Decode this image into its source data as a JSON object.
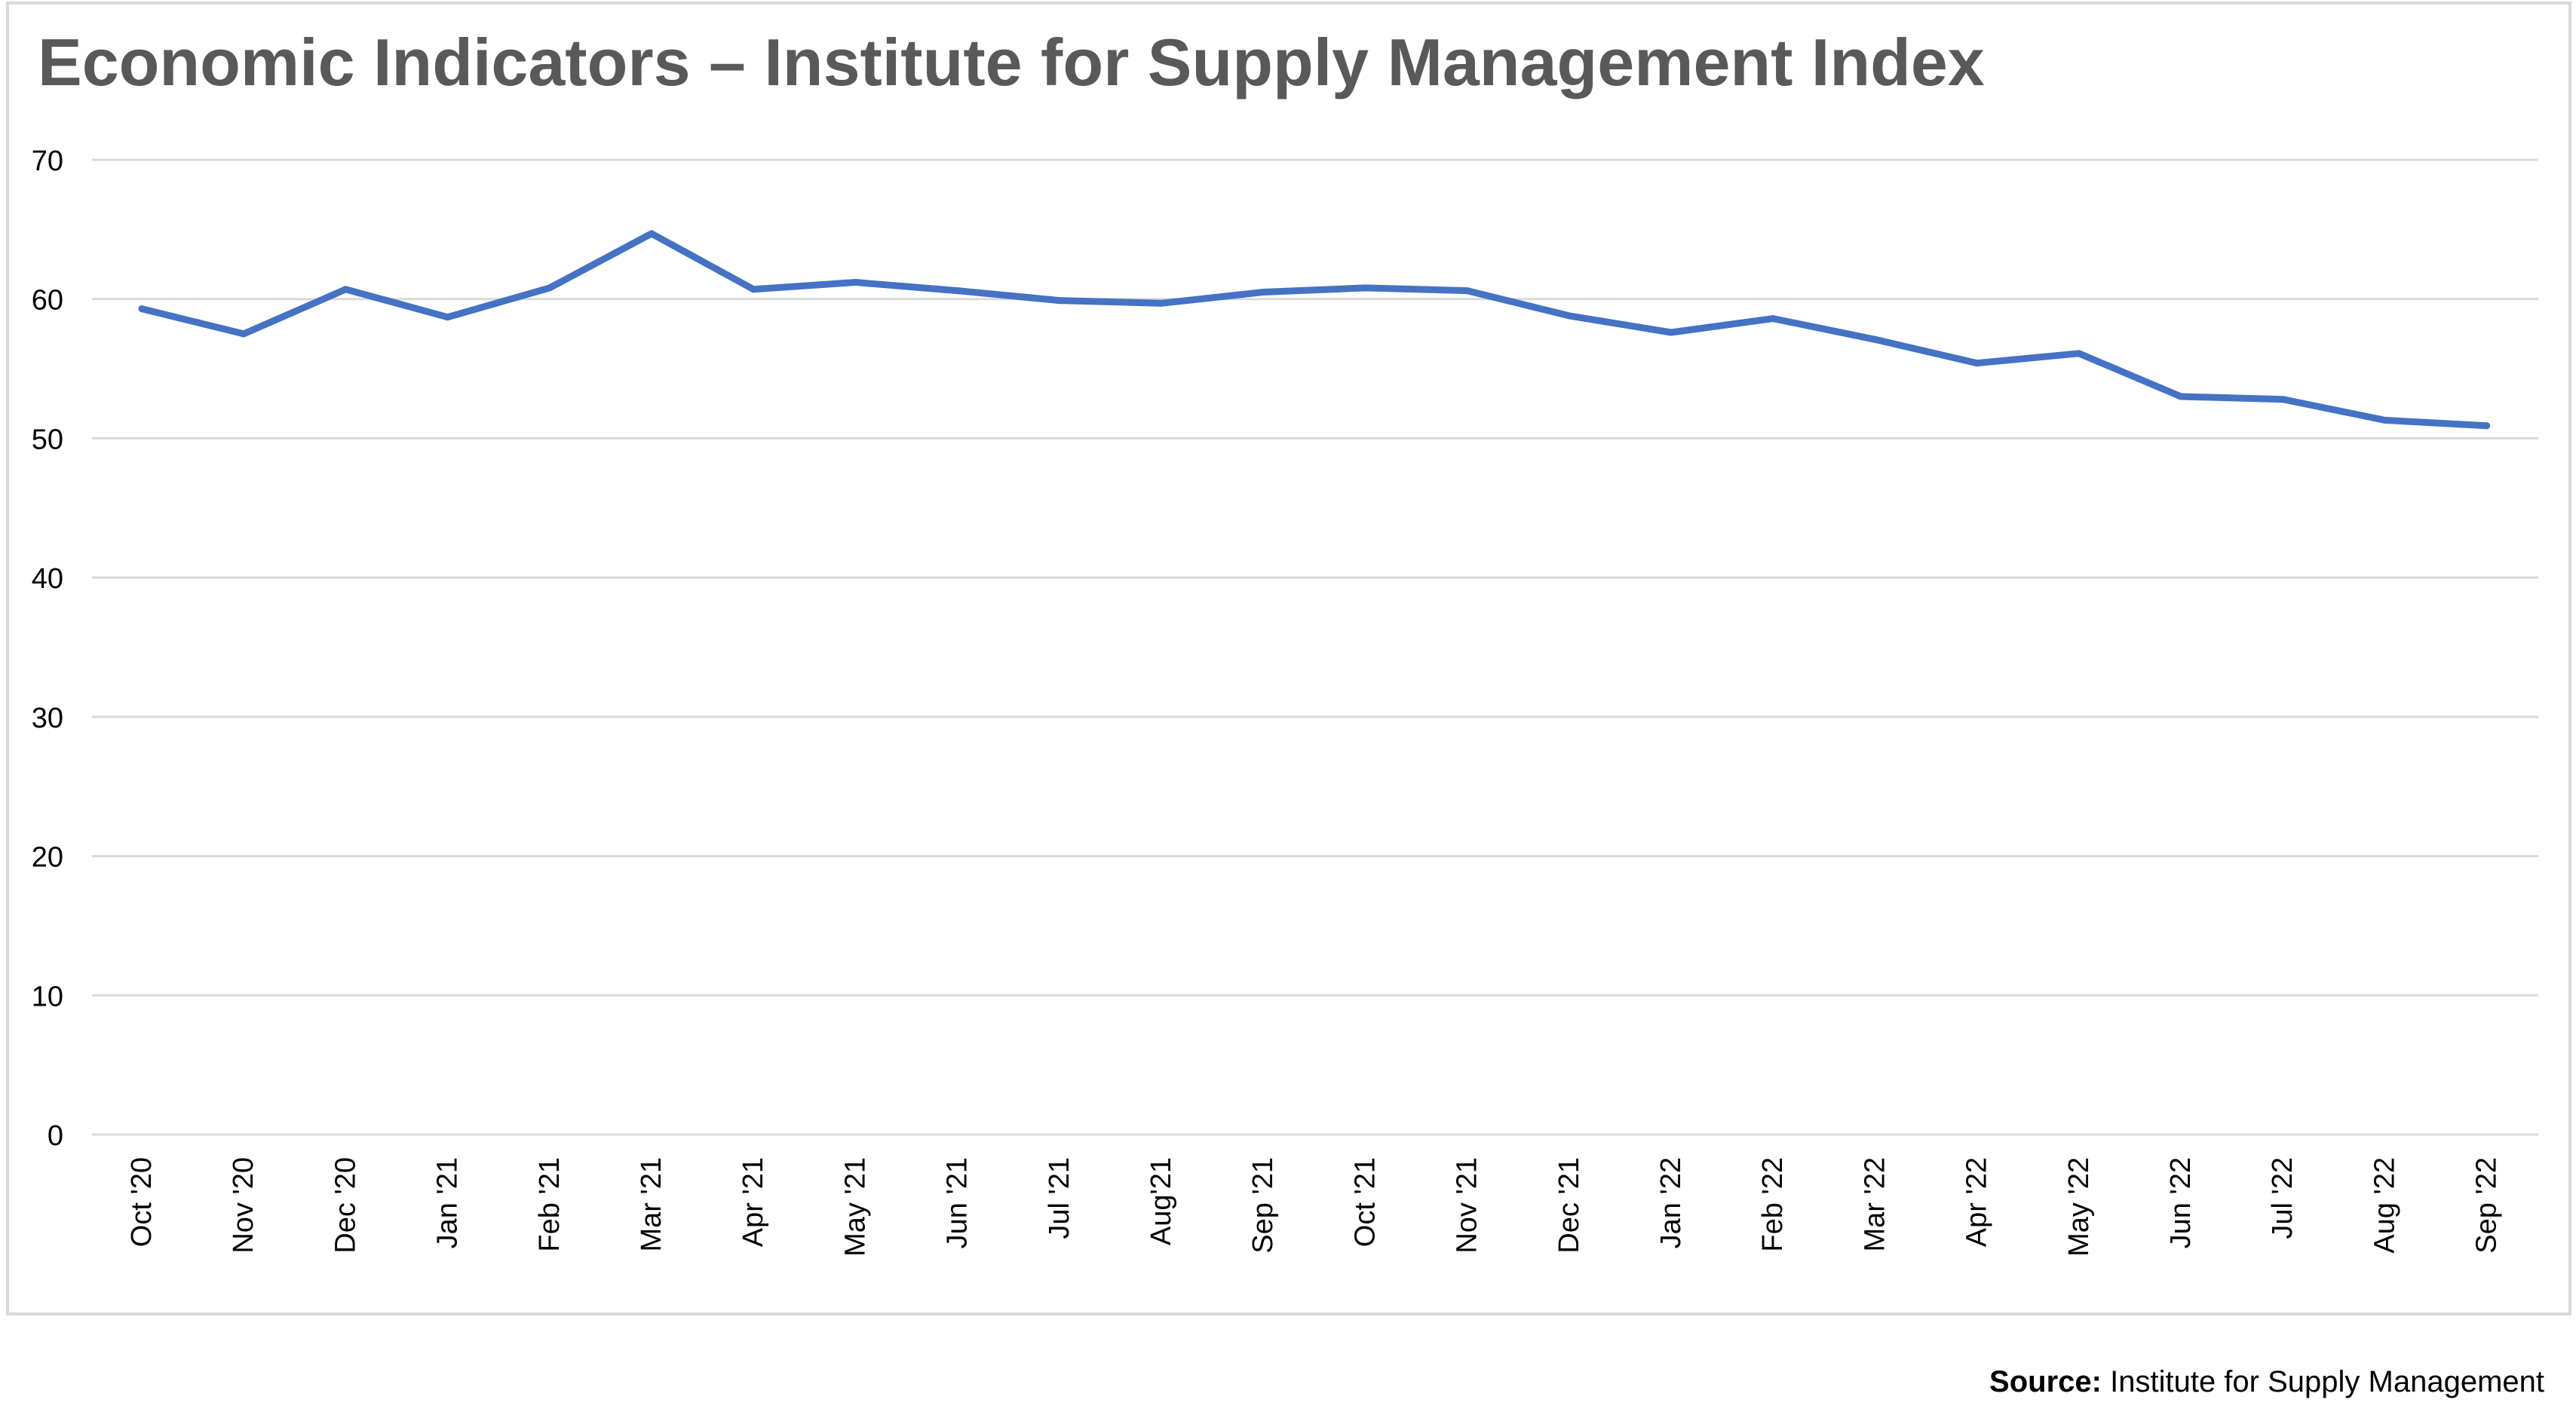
{
  "chart_data": {
    "type": "line",
    "title": "Economic Indicators – Institute for Supply Management Index",
    "xlabel": "",
    "ylabel": "",
    "categories": [
      "Oct '20",
      "Nov '20",
      "Dec '20",
      "Jan '21",
      "Feb '21",
      "Mar '21",
      "Apr '21",
      "May '21",
      "Jun '21",
      "Jul '21",
      "Aug'21",
      "Sep '21",
      "Oct '21",
      "Nov '21",
      "Dec '21",
      "Jan '22",
      "Feb '22",
      "Mar '22",
      "Apr '22",
      "May '22",
      "Jun '22",
      "Jul '22",
      "Aug '22",
      "Sep '22"
    ],
    "series": [
      {
        "values": [
          59.3,
          57.5,
          60.7,
          58.7,
          60.8,
          64.7,
          60.7,
          61.2,
          60.6,
          59.9,
          59.7,
          60.5,
          60.8,
          60.6,
          58.8,
          57.6,
          58.6,
          57.1,
          55.4,
          56.1,
          53.0,
          52.8,
          51.3,
          50.9
        ],
        "color": "#4472c4"
      }
    ],
    "ylim": [
      0,
      70
    ],
    "yticks": [
      0,
      10,
      20,
      30,
      40,
      50,
      60,
      70
    ],
    "grid": true,
    "legend": "none"
  },
  "source": {
    "label": "Source:",
    "text": "Institute for Supply Management"
  },
  "colors": {
    "line": "#4472c4",
    "grid": "#d9d9d9",
    "title": "#595959"
  }
}
